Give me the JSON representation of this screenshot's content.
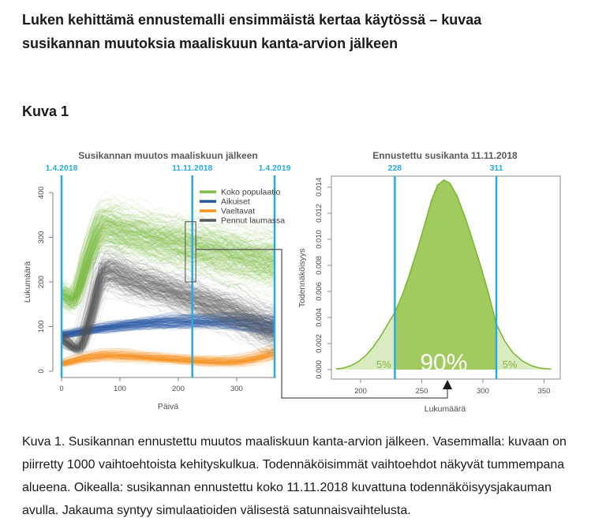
{
  "article": {
    "title": "Luken kehittämä ennustemalli ensimmäistä kertaa käytössä – kuvaa susikannan muutoksia maaliskuun kanta-arvion jälkeen",
    "figure_heading": "Kuva 1",
    "caption": "Kuva 1. Susikannan ennustettu muutos maaliskuun kanta-arvion jälkeen. Vasemmalla: kuvaan on piirretty 1000 vaihtoehtoista kehityskulkua. Todennäköisimmät vaihtoehdot näkyvät tummempana alueena.  Oikealla: susikannan ennustettu koko 11.11.2018 kuvattuna todennäköisyysjakauman avulla. Jakauma syntyy simulaatioiden välisestä satunnaisvaihtelusta."
  },
  "colors": {
    "cyan": "#29ABE2",
    "green": "#7CBE45",
    "blue": "#2255A4",
    "orange": "#F7941E",
    "gray": "#58595B",
    "density_fill_center": "#A1CB5F",
    "density_fill_tail": "#DAEBC1",
    "density_outline": "#76B82A",
    "axis_text": "#4D4D4D",
    "chart_title": "#595959",
    "connector": "#4D4D4D",
    "arrow": "#1a1a1a",
    "region_label_green": "#7CB93E",
    "region_label_white": "#ffffff"
  },
  "chart_data": [
    {
      "type": "line",
      "title": "Susikannan muutos maaliskuun jälkeen",
      "xlabel": "Päivä",
      "ylabel": "Lukumäärä",
      "xlim": [
        0,
        365
      ],
      "ylim": [
        0,
        400
      ],
      "xticks": [
        0,
        100,
        200,
        300
      ],
      "yticks": [
        0,
        100,
        200,
        300,
        400
      ],
      "n_simulations": 1000,
      "legend_position": "top-right",
      "grid": false,
      "event_lines": [
        {
          "label": "1.4.2018",
          "day": 0
        },
        {
          "label": "11.11.2018",
          "day": 224
        },
        {
          "label": "1.4.2019",
          "day": 365
        }
      ],
      "highlight_box": {
        "day_min": 212,
        "day_max": 230,
        "value_min": 200,
        "value_max": 335
      },
      "series": [
        {
          "name": "Koko populaatio",
          "color_key": "green",
          "days": [
            0,
            22,
            45,
            67,
            110,
            160,
            224,
            300,
            365
          ],
          "center": [
            175,
            163,
            255,
            322,
            312,
            298,
            281,
            262,
            247
          ],
          "spread": [
            25,
            23,
            38,
            50,
            50,
            50,
            52,
            54,
            55
          ]
        },
        {
          "name": "Aikuiset",
          "color_key": "blue",
          "days": [
            0,
            60,
            120,
            200,
            280,
            330,
            365
          ],
          "center": [
            82,
            95,
            105,
            112,
            112,
            107,
            100
          ],
          "spread": [
            9,
            11,
            13,
            16,
            17,
            19,
            24
          ]
        },
        {
          "name": "Vaeltavat",
          "color_key": "orange",
          "days": [
            0,
            40,
            80,
            160,
            270,
            320,
            365
          ],
          "center": [
            18,
            30,
            36,
            30,
            22,
            26,
            41
          ],
          "spread": [
            8,
            10,
            12,
            10,
            10,
            12,
            16
          ]
        },
        {
          "name": "Pennut laumassa",
          "color_key": "gray",
          "days": [
            0,
            30,
            48,
            70,
            120,
            170,
            224,
            300,
            365
          ],
          "center": [
            73,
            51,
            120,
            222,
            205,
            185,
            162,
            130,
            95
          ],
          "spread": [
            17,
            11,
            25,
            42,
            42,
            42,
            42,
            44,
            50
          ]
        }
      ]
    },
    {
      "type": "area",
      "title": "Ennustettu susikanta 11.11.2018",
      "xlabel": "Lukumäärä",
      "ylabel": "Todennäköisyys",
      "xlim": [
        174,
        362
      ],
      "ylim": [
        0,
        0.0148
      ],
      "xticks": [
        200,
        250,
        300,
        350
      ],
      "yticks": [
        0.0,
        0.002,
        0.004,
        0.006,
        0.008,
        0.01,
        0.012,
        0.014
      ],
      "quantile_lines": [
        {
          "label": "228",
          "x": 228
        },
        {
          "label": "311",
          "x": 311
        }
      ],
      "region_labels": [
        {
          "text": "5%",
          "x": 219,
          "style": "green"
        },
        {
          "text": "90%",
          "x": 268,
          "style": "white-large"
        },
        {
          "text": "5%",
          "x": 322,
          "style": "green"
        }
      ],
      "mode_arrow_x": 271,
      "density": {
        "x": [
          180,
          186,
          192,
          198,
          204,
          210,
          216,
          222,
          228,
          234,
          240,
          246,
          252,
          258,
          263,
          268,
          273,
          279,
          285,
          291,
          297,
          303,
          311,
          318,
          325,
          332,
          339,
          346,
          352,
          356
        ],
        "y": [
          4e-05,
          0.00012,
          0.0003,
          0.0006,
          0.00105,
          0.0017,
          0.0025,
          0.00345,
          0.0044,
          0.0057,
          0.0073,
          0.0091,
          0.011,
          0.013,
          0.01415,
          0.01455,
          0.0143,
          0.0133,
          0.0118,
          0.0101,
          0.0083,
          0.0064,
          0.0035,
          0.00215,
          0.00125,
          0.00068,
          0.00032,
          0.00013,
          6e-05,
          3e-05
        ]
      }
    }
  ]
}
